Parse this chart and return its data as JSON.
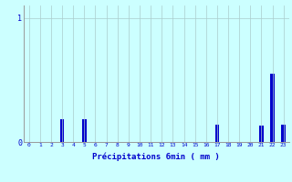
{
  "categories": [
    0,
    1,
    2,
    3,
    4,
    5,
    6,
    7,
    8,
    9,
    10,
    11,
    12,
    13,
    14,
    15,
    16,
    17,
    18,
    19,
    20,
    21,
    22,
    23
  ],
  "values": [
    0,
    0,
    0,
    0.18,
    0,
    0.18,
    0,
    0,
    0,
    0,
    0,
    0,
    0,
    0,
    0,
    0,
    0,
    0.14,
    0,
    0,
    0,
    0.13,
    0.55,
    0.14
  ],
  "bar_color": "#0000cc",
  "background_color": "#ccffff",
  "grid_color": "#aacccc",
  "text_color": "#0000cc",
  "xlabel": "Précipitations 6min ( mm )",
  "ylim": [
    0,
    1.1
  ],
  "xlim": [
    -0.5,
    23.5
  ],
  "yticks": [
    0,
    1
  ],
  "bar_width": 0.4
}
